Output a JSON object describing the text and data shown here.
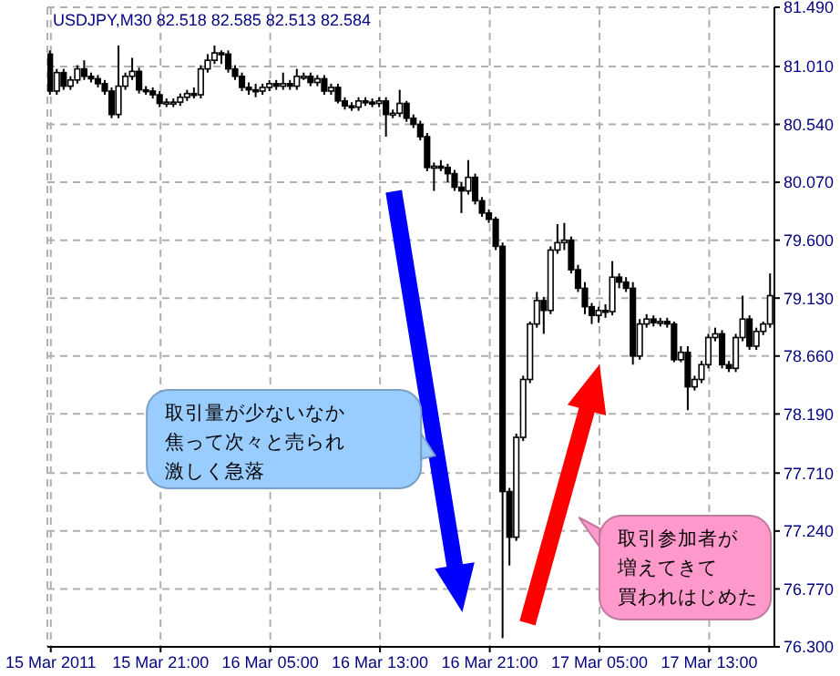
{
  "chart_data": {
    "type": "candlestick",
    "title": "USDJPY,M30 82.518 82.585 82.513 82.584",
    "color": "#000000",
    "grid": true,
    "categories": [
      "15 Mar 2011",
      null,
      null,
      null,
      null,
      null,
      null,
      null,
      null,
      null,
      null,
      null,
      null,
      null,
      null,
      null,
      "15 Mar 21:00",
      null,
      null,
      null,
      null,
      null,
      null,
      null,
      null,
      null,
      null,
      null,
      null,
      null,
      null,
      null,
      "16 Mar 05:00",
      null,
      null,
      null,
      null,
      null,
      null,
      null,
      null,
      null,
      null,
      null,
      null,
      null,
      null,
      null,
      "16 Mar 13:00",
      null,
      null,
      null,
      null,
      null,
      null,
      null,
      null,
      null,
      null,
      null,
      null,
      null,
      null,
      null,
      "16 Mar 21:00",
      null,
      null,
      null,
      null,
      null,
      null,
      null,
      null,
      null,
      null,
      null,
      null,
      null,
      null,
      null,
      "17 Mar 05:00",
      null,
      null,
      null,
      null,
      null,
      null,
      null,
      null,
      null,
      null,
      null,
      null,
      null,
      null,
      null,
      "17 Mar 13:00",
      null,
      null,
      null,
      null,
      null,
      null,
      null,
      null,
      null
    ],
    "ohlc": [
      [
        81.11,
        81.14,
        80.78,
        80.81
      ],
      [
        80.81,
        80.99,
        80.78,
        80.96
      ],
      [
        80.96,
        80.99,
        80.82,
        80.85
      ],
      [
        80.85,
        80.93,
        80.82,
        80.9
      ],
      [
        80.9,
        81.02,
        80.87,
        80.99
      ],
      [
        80.99,
        81.06,
        80.9,
        80.93
      ],
      [
        80.93,
        80.96,
        80.88,
        80.91
      ],
      [
        80.91,
        80.94,
        80.84,
        80.87
      ],
      [
        80.87,
        80.9,
        80.78,
        80.81
      ],
      [
        80.81,
        80.84,
        80.59,
        80.62
      ],
      [
        80.62,
        81.18,
        80.59,
        80.85
      ],
      [
        80.85,
        80.96,
        80.82,
        80.93
      ],
      [
        80.93,
        81.08,
        80.9,
        80.97
      ],
      [
        80.97,
        81.0,
        80.79,
        80.82
      ],
      [
        80.82,
        80.85,
        80.78,
        80.81
      ],
      [
        80.81,
        80.84,
        80.75,
        80.78
      ],
      [
        80.78,
        80.81,
        80.68,
        80.71
      ],
      [
        80.71,
        80.75,
        80.68,
        80.72
      ],
      [
        80.72,
        80.75,
        80.68,
        80.72
      ],
      [
        80.72,
        80.79,
        80.69,
        80.76
      ],
      [
        80.76,
        80.82,
        80.73,
        80.79
      ],
      [
        80.79,
        80.84,
        80.75,
        80.78
      ],
      [
        80.78,
        81.02,
        80.75,
        80.99
      ],
      [
        80.99,
        81.11,
        80.96,
        81.06
      ],
      [
        81.06,
        81.18,
        81.03,
        81.12
      ],
      [
        81.12,
        81.14,
        81.03,
        81.11
      ],
      [
        81.11,
        81.14,
        80.96,
        80.99
      ],
      [
        80.99,
        81.02,
        80.9,
        80.93
      ],
      [
        80.93,
        80.96,
        80.81,
        80.84
      ],
      [
        80.84,
        80.88,
        80.78,
        80.82
      ],
      [
        80.82,
        80.87,
        80.76,
        80.81
      ],
      [
        80.81,
        80.87,
        80.78,
        80.84
      ],
      [
        80.84,
        80.9,
        80.81,
        80.87
      ],
      [
        80.87,
        80.9,
        80.82,
        80.85
      ],
      [
        80.85,
        80.96,
        80.82,
        80.87
      ],
      [
        80.87,
        80.9,
        80.82,
        80.85
      ],
      [
        80.85,
        80.99,
        80.82,
        80.93
      ],
      [
        80.93,
        80.96,
        80.9,
        80.93
      ],
      [
        80.93,
        80.96,
        80.85,
        80.88
      ],
      [
        80.88,
        80.94,
        80.85,
        80.91
      ],
      [
        80.91,
        80.94,
        80.78,
        80.81
      ],
      [
        80.81,
        80.87,
        80.78,
        80.84
      ],
      [
        80.84,
        80.87,
        80.71,
        80.73
      ],
      [
        80.73,
        80.76,
        80.66,
        80.69
      ],
      [
        80.69,
        80.72,
        80.65,
        80.68
      ],
      [
        80.68,
        80.76,
        80.65,
        80.73
      ],
      [
        80.73,
        80.76,
        80.69,
        80.72
      ],
      [
        80.72,
        80.75,
        80.68,
        80.71
      ],
      [
        80.71,
        80.76,
        80.68,
        80.73
      ],
      [
        80.73,
        80.76,
        80.44,
        80.62
      ],
      [
        80.62,
        80.66,
        80.59,
        80.63
      ],
      [
        80.63,
        80.82,
        80.6,
        80.71
      ],
      [
        80.71,
        80.73,
        80.56,
        80.59
      ],
      [
        80.59,
        80.62,
        80.51,
        80.54
      ],
      [
        80.54,
        80.57,
        80.41,
        80.44
      ],
      [
        80.44,
        80.47,
        80.16,
        80.19
      ],
      [
        80.19,
        80.23,
        80.0,
        80.2
      ],
      [
        80.2,
        80.25,
        80.16,
        80.19
      ],
      [
        80.19,
        80.22,
        80.07,
        80.14
      ],
      [
        80.14,
        80.17,
        80.0,
        80.03
      ],
      [
        80.03,
        80.07,
        79.82,
        80.0
      ],
      [
        80.0,
        80.25,
        79.97,
        80.11
      ],
      [
        80.11,
        80.14,
        79.89,
        79.92
      ],
      [
        79.92,
        79.95,
        79.79,
        79.82
      ],
      [
        79.82,
        79.85,
        79.74,
        79.77
      ],
      [
        79.77,
        79.79,
        79.52,
        79.55
      ],
      [
        79.55,
        79.58,
        76.37,
        77.56
      ],
      [
        77.56,
        77.59,
        76.96,
        77.19
      ],
      [
        77.19,
        78.03,
        77.16,
        78.0
      ],
      [
        78.0,
        78.5,
        77.97,
        78.47
      ],
      [
        78.47,
        78.94,
        78.44,
        78.92
      ],
      [
        78.92,
        79.18,
        78.89,
        79.11
      ],
      [
        79.11,
        79.14,
        78.84,
        79.03
      ],
      [
        79.03,
        79.55,
        79.0,
        79.52
      ],
      [
        79.52,
        79.73,
        79.49,
        79.58
      ],
      [
        79.58,
        79.74,
        79.52,
        79.6
      ],
      [
        79.6,
        79.63,
        79.33,
        79.36
      ],
      [
        79.36,
        79.4,
        79.18,
        79.21
      ],
      [
        79.21,
        79.26,
        79.0,
        79.06
      ],
      [
        79.06,
        79.09,
        78.92,
        78.99
      ],
      [
        78.99,
        79.06,
        78.93,
        79.03
      ],
      [
        79.03,
        79.08,
        78.97,
        79.02
      ],
      [
        79.02,
        79.43,
        78.99,
        79.3
      ],
      [
        79.3,
        79.33,
        79.21,
        79.26
      ],
      [
        79.26,
        79.3,
        79.18,
        79.21
      ],
      [
        79.21,
        79.26,
        78.59,
        78.66
      ],
      [
        78.66,
        78.96,
        78.63,
        78.92
      ],
      [
        78.92,
        79.0,
        78.89,
        78.96
      ],
      [
        78.96,
        78.99,
        78.9,
        78.93
      ],
      [
        78.93,
        78.97,
        78.9,
        78.94
      ],
      [
        78.94,
        78.97,
        78.89,
        78.92
      ],
      [
        78.92,
        78.94,
        78.61,
        78.63
      ],
      [
        78.63,
        78.74,
        78.61,
        78.69
      ],
      [
        78.69,
        78.74,
        78.22,
        78.41
      ],
      [
        78.41,
        78.5,
        78.38,
        78.47
      ],
      [
        78.47,
        78.62,
        78.44,
        78.59
      ],
      [
        78.59,
        78.84,
        78.56,
        78.81
      ],
      [
        78.81,
        78.89,
        78.78,
        78.84
      ],
      [
        78.84,
        78.87,
        78.56,
        78.59
      ],
      [
        78.59,
        78.62,
        78.53,
        78.56
      ],
      [
        78.56,
        78.84,
        78.53,
        78.81
      ],
      [
        78.81,
        79.15,
        78.78,
        78.96
      ],
      [
        78.96,
        78.99,
        78.71,
        78.74
      ],
      [
        78.74,
        78.89,
        78.71,
        78.86
      ],
      [
        78.86,
        78.94,
        78.83,
        78.92
      ],
      [
        78.92,
        79.33,
        78.89,
        79.15
      ]
    ],
    "ylim": [
      76.3,
      81.49
    ],
    "yticks": [
      {
        "value": 76.3,
        "label": "76.300"
      },
      {
        "value": 76.77,
        "label": "76.770"
      },
      {
        "value": 77.24,
        "label": "77.240"
      },
      {
        "value": 77.71,
        "label": "77.710"
      },
      {
        "value": 78.19,
        "label": "78.190"
      },
      {
        "value": 78.66,
        "label": "78.660"
      },
      {
        "value": 79.13,
        "label": "79.130"
      },
      {
        "value": 79.6,
        "label": "79.600"
      },
      {
        "value": 80.07,
        "label": "80.070"
      },
      {
        "value": 80.54,
        "label": "80.540"
      },
      {
        "value": 81.01,
        "label": "81.010"
      },
      {
        "value": 81.49,
        "label": "81.490"
      }
    ],
    "annotations": [
      "取引量が少ないなか焦って次々と売られ激しく急落",
      "取引参加者が増えてきて買われはじめた"
    ]
  }
}
